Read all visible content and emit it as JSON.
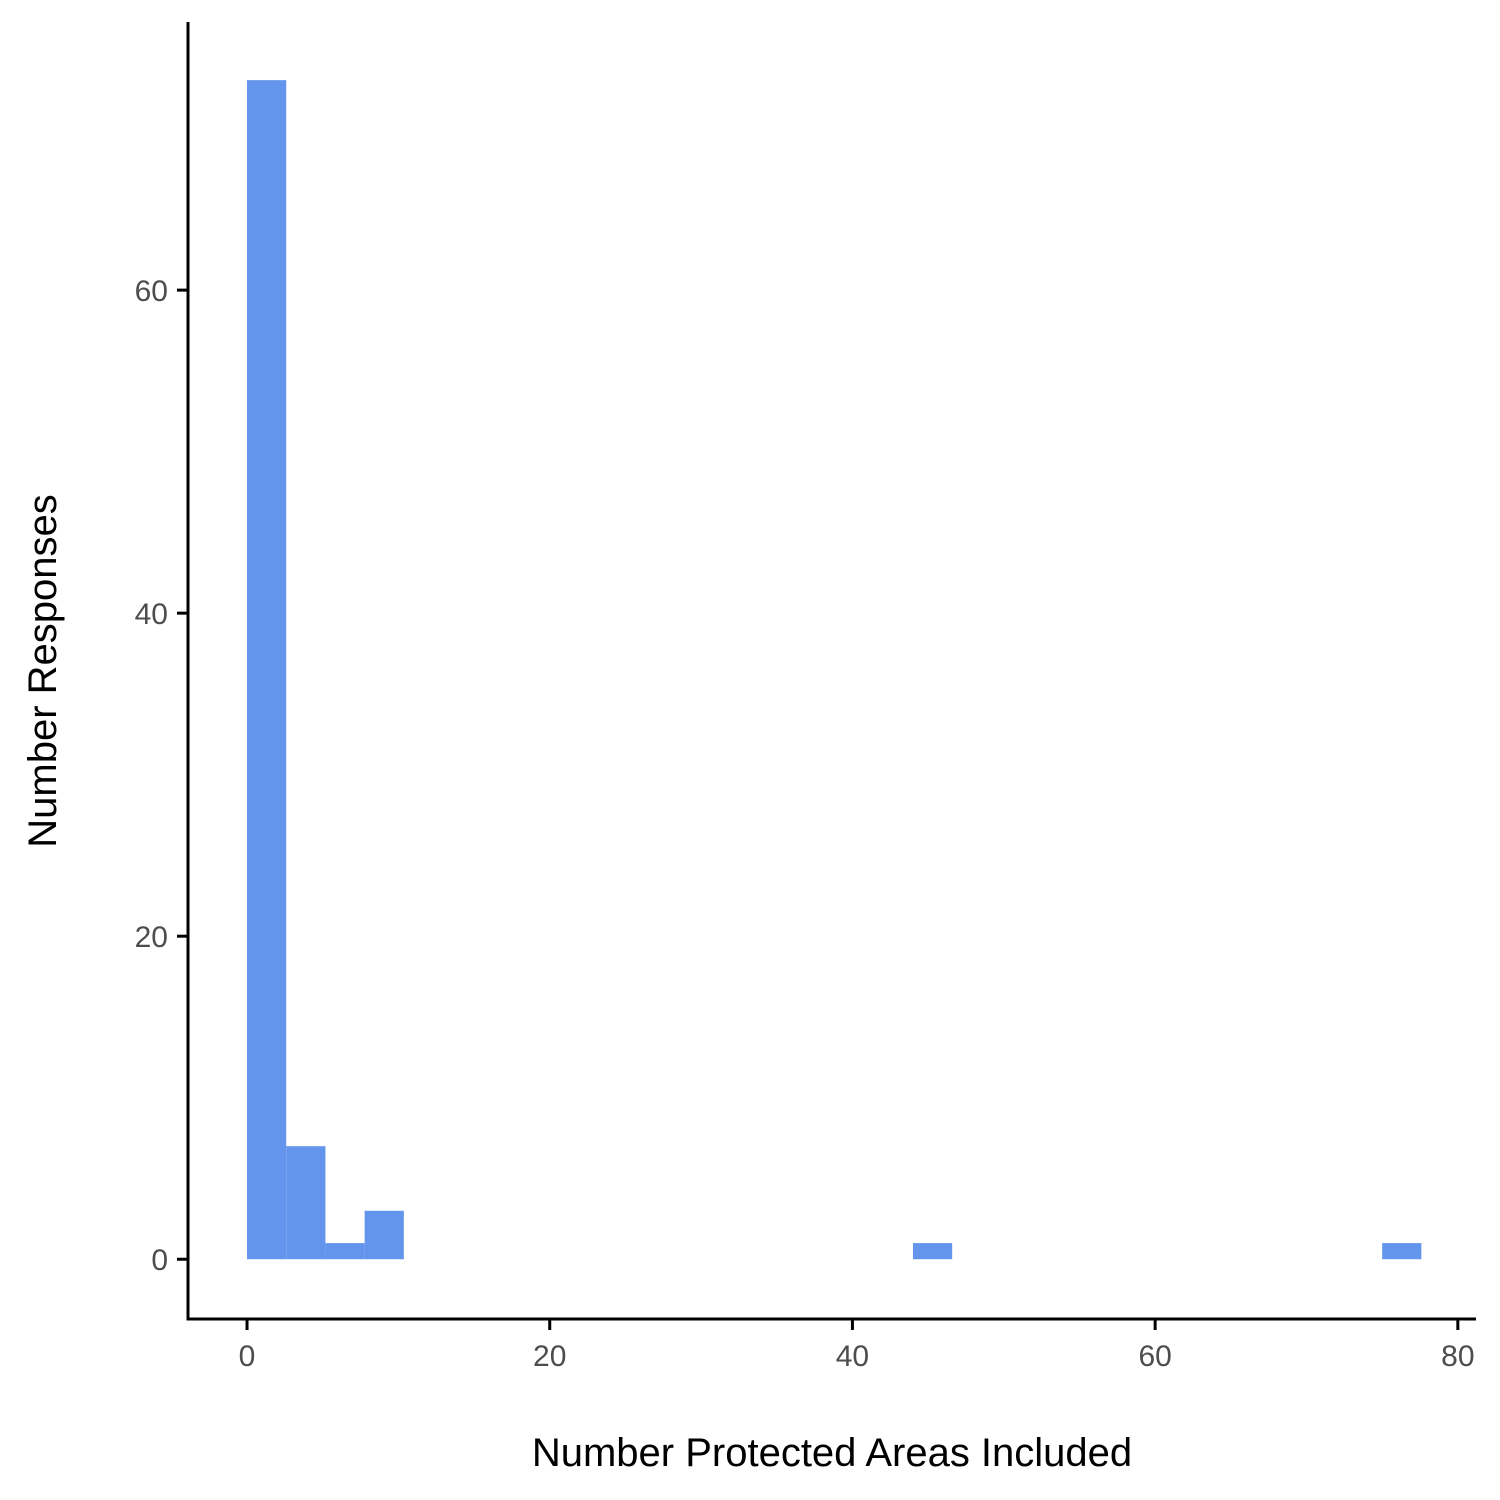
{
  "chart_data": {
    "type": "bar",
    "title": "",
    "xlabel": "Number Protected Areas Included",
    "ylabel": "Number Responses",
    "xlim": [
      -3.9,
      81.2
    ],
    "ylim": [
      -3.7,
      76.6
    ],
    "x_ticks": [
      0,
      20,
      40,
      60,
      80
    ],
    "y_ticks": [
      0,
      20,
      40,
      60
    ],
    "bin_width": 2.59,
    "bins": [
      {
        "x_start": 0.0,
        "x_end": 2.59,
        "count": 73
      },
      {
        "x_start": 2.59,
        "x_end": 5.18,
        "count": 7
      },
      {
        "x_start": 5.18,
        "x_end": 7.77,
        "count": 1
      },
      {
        "x_start": 7.77,
        "x_end": 10.36,
        "count": 3
      },
      {
        "x_start": 44.0,
        "x_end": 46.59,
        "count": 1
      },
      {
        "x_start": 75.0,
        "x_end": 77.59,
        "count": 1
      }
    ],
    "bar_color": "#6495ED",
    "grid": false,
    "legend": "none"
  }
}
